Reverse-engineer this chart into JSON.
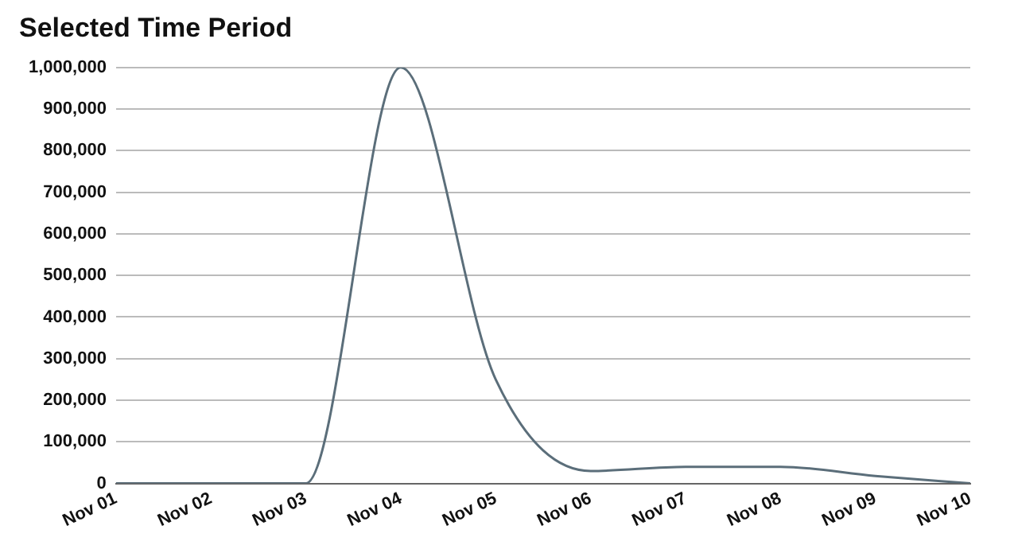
{
  "chart_data": {
    "type": "line",
    "title": "Selected Time Period",
    "categories": [
      "Nov 01",
      "Nov 02",
      "Nov 03",
      "Nov 04",
      "Nov 05",
      "Nov 06",
      "Nov 07",
      "Nov 08",
      "Nov 09",
      "Nov 10"
    ],
    "series": [
      {
        "color": "#5b6e7a",
        "values": [
          0,
          0,
          0,
          1000000,
          250000,
          30000,
          40000,
          40000,
          18000,
          0
        ]
      }
    ],
    "ylim": [
      0,
      1000000
    ],
    "yticks": [
      {
        "value": 0,
        "label": "0"
      },
      {
        "value": 100000,
        "label": "100,000"
      },
      {
        "value": 200000,
        "label": "200,000"
      },
      {
        "value": 300000,
        "label": "300,000"
      },
      {
        "value": 400000,
        "label": "400,000"
      },
      {
        "value": 500000,
        "label": "500,000"
      },
      {
        "value": 600000,
        "label": "600,000"
      },
      {
        "value": 700000,
        "label": "700,000"
      },
      {
        "value": 800000,
        "label": "800,000"
      },
      {
        "value": 900000,
        "label": "900,000"
      },
      {
        "value": 1000000,
        "label": "1,000,000"
      }
    ],
    "grid": "y",
    "legend": false,
    "marker": "none",
    "line_style": "solid"
  }
}
